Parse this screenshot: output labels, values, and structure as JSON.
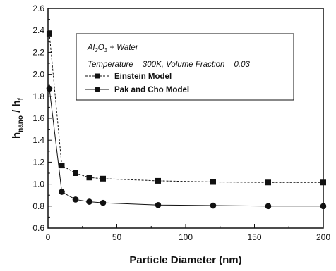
{
  "chart_data": {
    "type": "line",
    "xlabel": "Particle Diameter (nm)",
    "ylabel": {
      "main": "h",
      "sub_nano": "nano",
      "sep": " / h",
      "sub_f": "f"
    },
    "xlim": [
      0,
      200
    ],
    "ylim": [
      0.6,
      2.6
    ],
    "x_ticks": [
      0,
      50,
      100,
      150,
      200
    ],
    "y_ticks": [
      0.6,
      0.8,
      1.0,
      1.2,
      1.4,
      1.6,
      1.8,
      2.0,
      2.2,
      2.4,
      2.6
    ],
    "x_tick_labels": [
      "0",
      "50",
      "100",
      "150",
      "200"
    ],
    "y_tick_labels": [
      "0.6",
      "0.8",
      "1.0",
      "1.2",
      "1.4",
      "1.6",
      "1.8",
      "2.0",
      "2.2",
      "2.4",
      "2.6"
    ],
    "annotation": {
      "compound_pre": "Al",
      "compound_sub1": "2",
      "compound_mid": "O",
      "compound_sub2": "3",
      "compound_post": " + Water",
      "conditions": "Temperature = 300K, Volume Fraction = 0.03"
    },
    "legend_position": "top-right",
    "series": [
      {
        "name": "Einstein Model",
        "marker": "square",
        "x": [
          1,
          10,
          20,
          30,
          40,
          80,
          120,
          160,
          200
        ],
        "y": [
          2.37,
          1.17,
          1.1,
          1.06,
          1.05,
          1.03,
          1.02,
          1.015,
          1.015
        ]
      },
      {
        "name": "Pak and Cho Model",
        "marker": "circle",
        "x": [
          1,
          10,
          20,
          30,
          40,
          80,
          120,
          160,
          200
        ],
        "y": [
          1.87,
          0.93,
          0.86,
          0.84,
          0.83,
          0.81,
          0.805,
          0.8,
          0.8
        ]
      }
    ]
  }
}
